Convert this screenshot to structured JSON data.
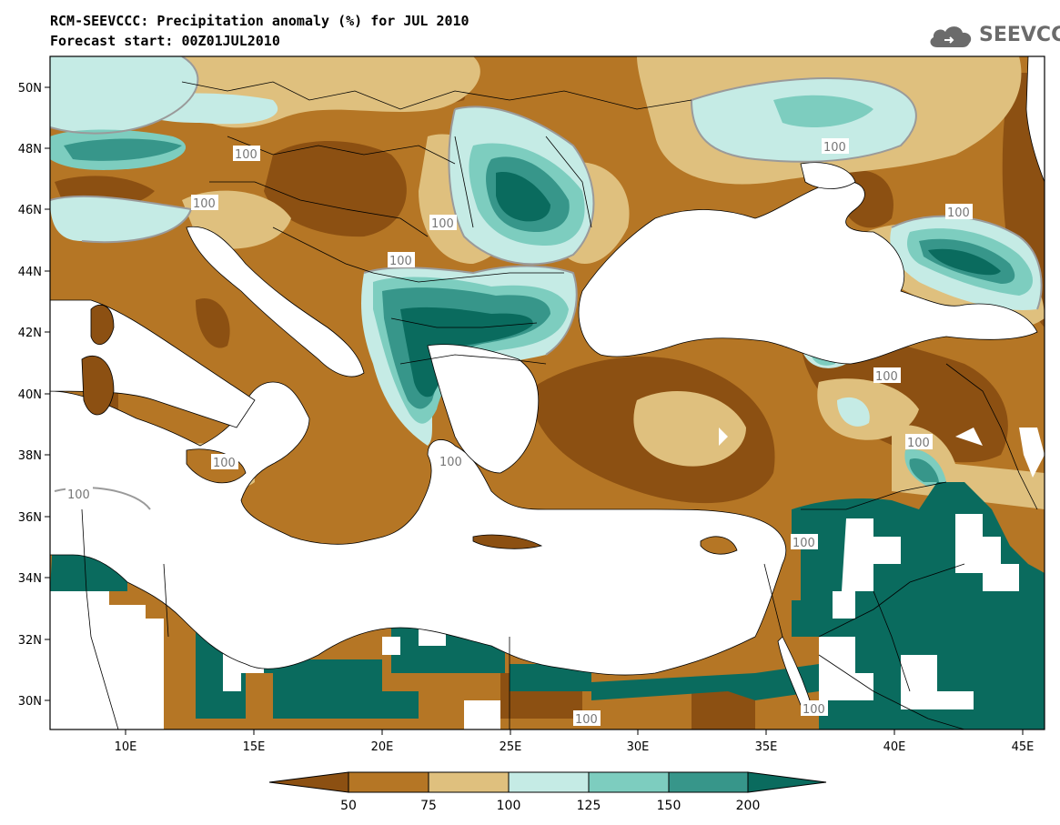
{
  "header": {
    "title": "RCM-SEEVCCC: Precipitation anomaly (%) for JUL 2010",
    "subtitle": "Forecast start: 00Z01JUL2010"
  },
  "logo": {
    "text": "SEEVCCC",
    "icon": "cloud-icon"
  },
  "map": {
    "lat_labels": [
      "50N",
      "48N",
      "46N",
      "44N",
      "42N",
      "40N",
      "38N",
      "36N",
      "34N",
      "32N",
      "30N"
    ],
    "lon_labels": [
      "10E",
      "15E",
      "20E",
      "25E",
      "30E",
      "35E",
      "40E",
      "45E"
    ],
    "contour_label": "100",
    "colors": {
      "below_50": "#8c5012",
      "50_75": "#b57625",
      "75_100": "#dfc07e",
      "100_125": "#c5ebe5",
      "125_150": "#7dcdbf",
      "150_200": "#37968a",
      "above_200": "#0a6b5e",
      "sea": "#ffffff"
    }
  },
  "colorbar": {
    "ticks": [
      "50",
      "75",
      "100",
      "125",
      "150",
      "200"
    ],
    "colors": [
      "#8c5012",
      "#b57625",
      "#dfc07e",
      "#c5ebe5",
      "#7dcdbf",
      "#37968a",
      "#0a6b5e"
    ]
  }
}
